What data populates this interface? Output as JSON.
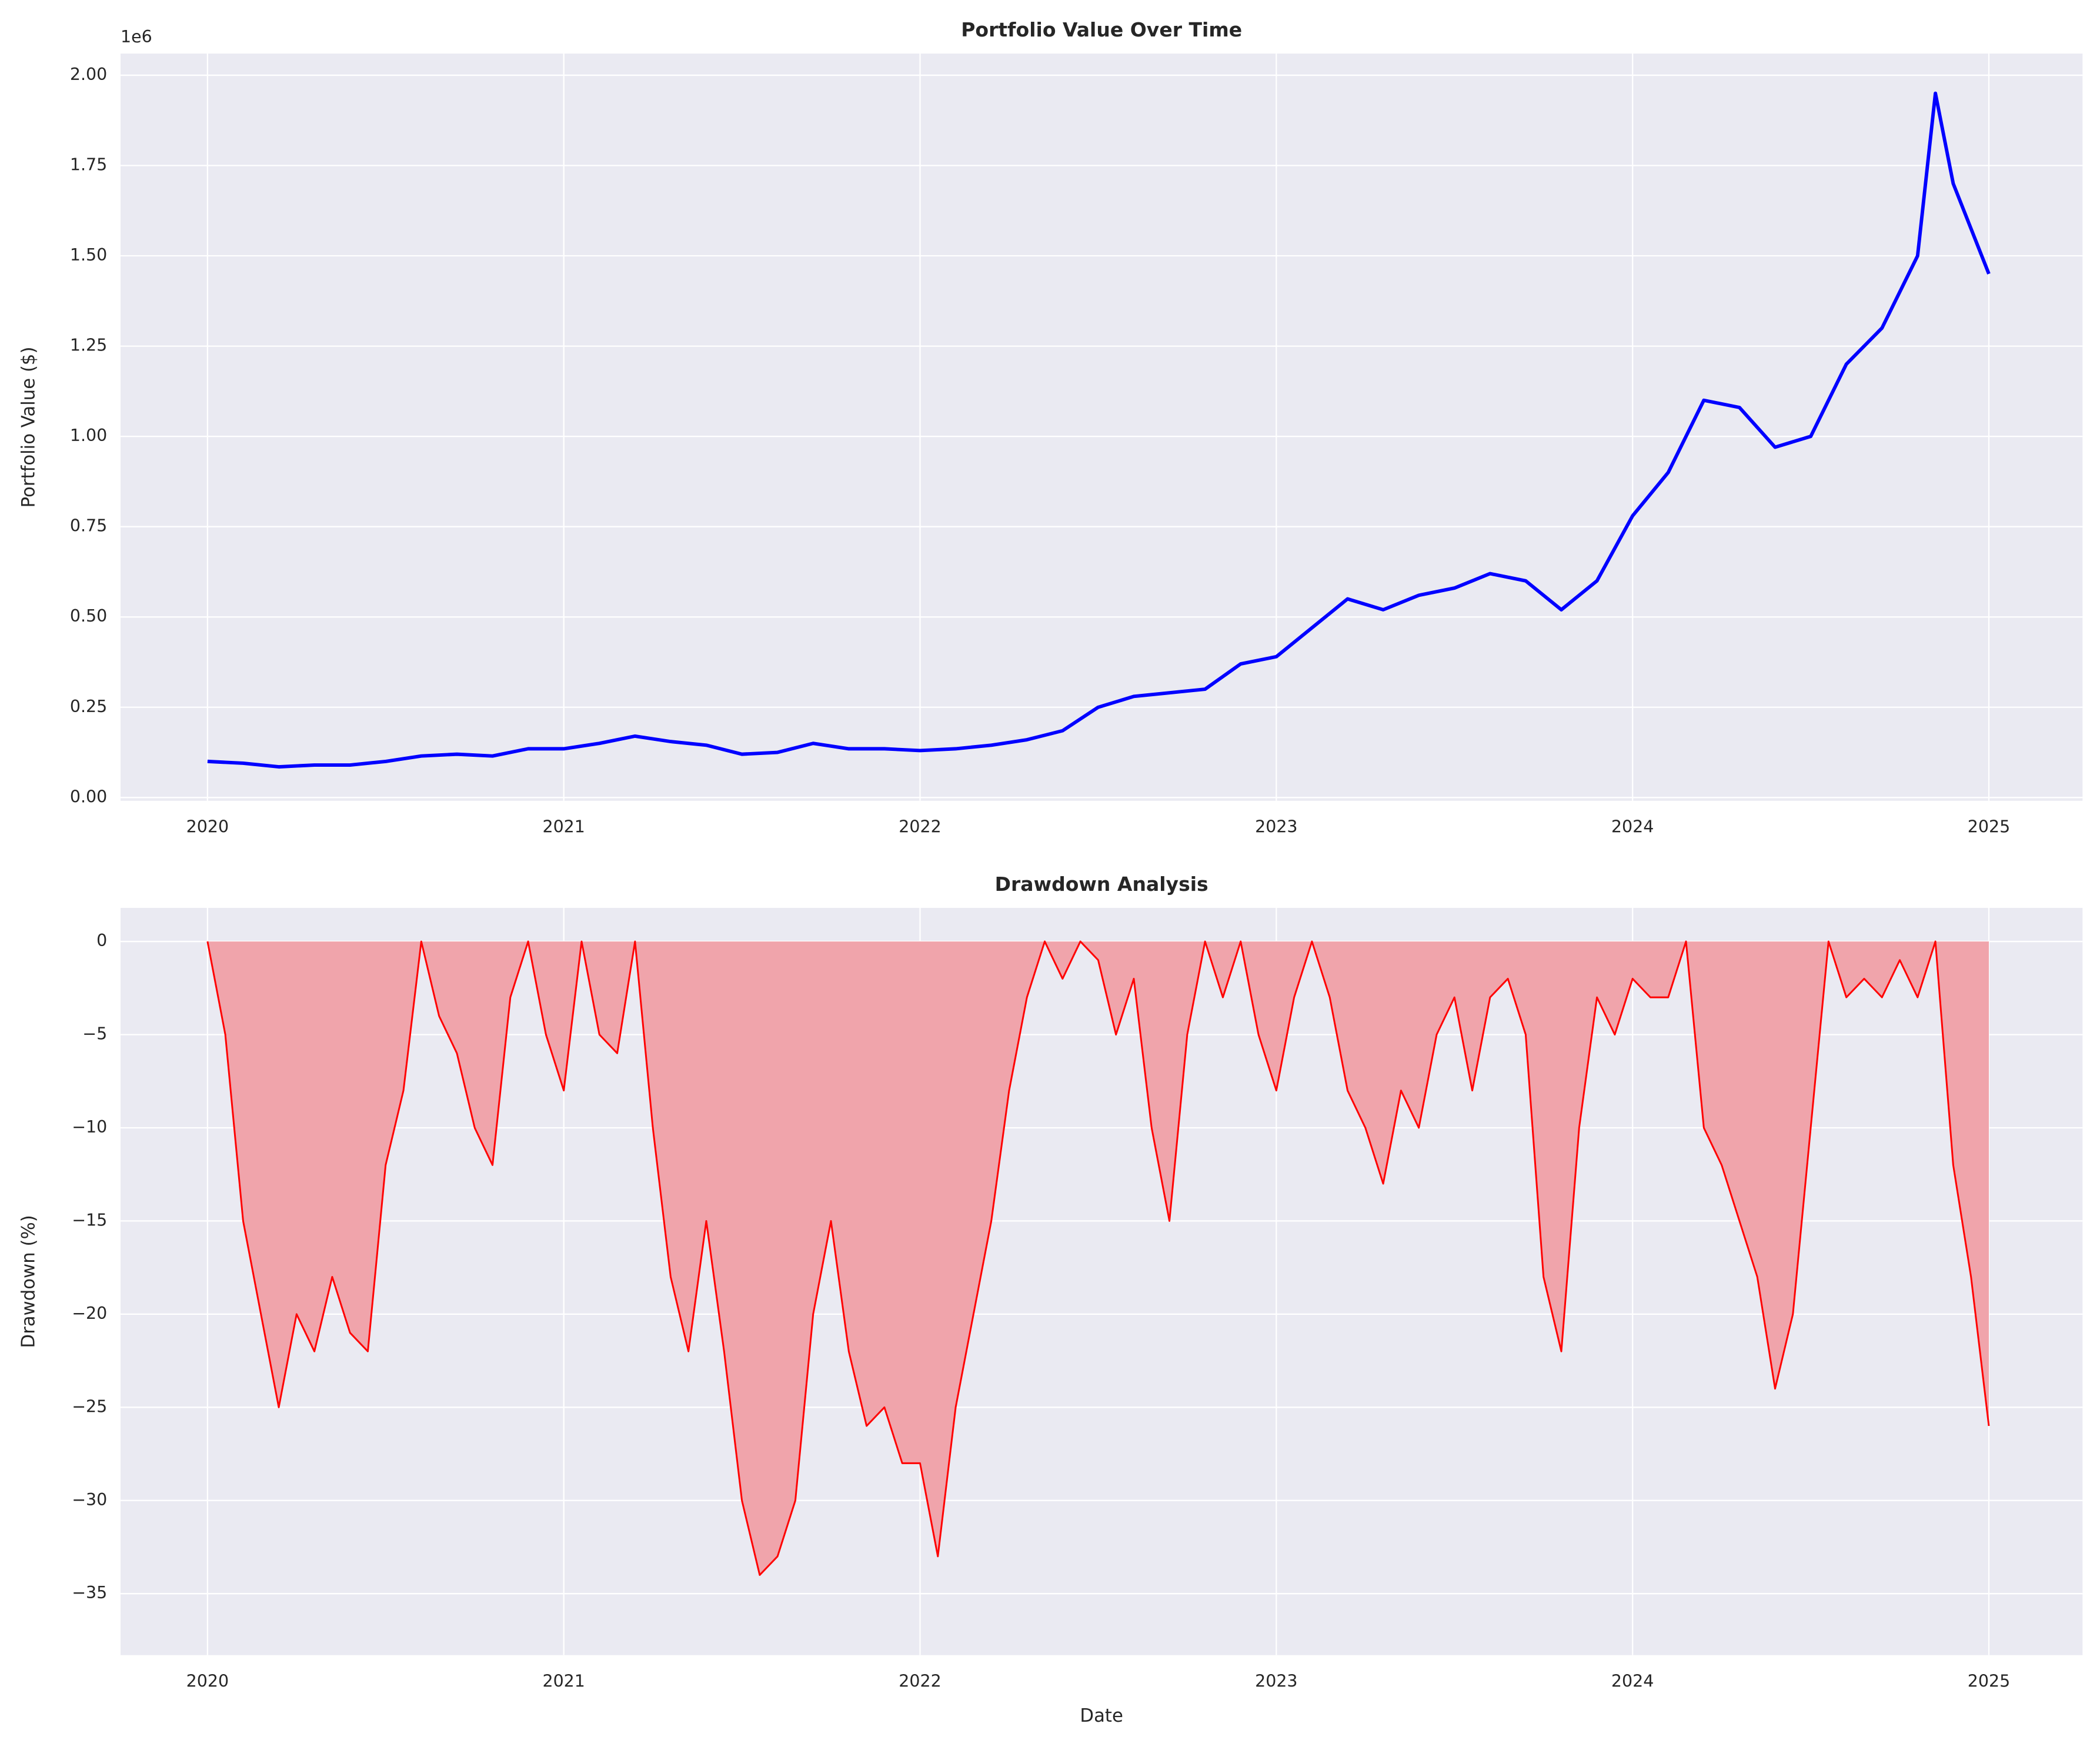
{
  "chart_data": [
    {
      "type": "line",
      "title": "Portfolio Value Over Time",
      "y_label": "Portfolio Value ($)",
      "y_offset_label": "1e6",
      "x": [
        2020.0,
        2020.1,
        2020.2,
        2020.3,
        2020.4,
        2020.5,
        2020.6,
        2020.7,
        2020.8,
        2020.9,
        2021.0,
        2021.1,
        2021.2,
        2021.3,
        2021.4,
        2021.5,
        2021.6,
        2021.7,
        2021.8,
        2021.9,
        2022.0,
        2022.1,
        2022.2,
        2022.3,
        2022.4,
        2022.5,
        2022.6,
        2022.7,
        2022.8,
        2022.9,
        2023.0,
        2023.1,
        2023.2,
        2023.3,
        2023.4,
        2023.5,
        2023.6,
        2023.7,
        2023.8,
        2023.9,
        2024.0,
        2024.1,
        2024.2,
        2024.3,
        2024.4,
        2024.5,
        2024.6,
        2024.7,
        2024.8,
        2024.85,
        2024.9,
        2025.0
      ],
      "series": [
        {
          "color": "#0000ff",
          "values": [
            100000,
            95000,
            85000,
            90000,
            90000,
            100000,
            115000,
            120000,
            115000,
            135000,
            135000,
            150000,
            170000,
            155000,
            145000,
            120000,
            125000,
            150000,
            135000,
            135000,
            130000,
            135000,
            145000,
            160000,
            185000,
            250000,
            280000,
            290000,
            300000,
            370000,
            390000,
            470000,
            550000,
            520000,
            560000,
            580000,
            620000,
            600000,
            520000,
            600000,
            780000,
            900000,
            1100000,
            1080000,
            970000,
            1000000,
            1200000,
            1300000,
            1500000,
            1950000,
            1700000,
            1450000
          ]
        }
      ],
      "xlim": [
        2019.756,
        2025.263
      ],
      "xticks": [
        2020,
        2021,
        2022,
        2023,
        2024,
        2025
      ],
      "ylim": [
        -9000,
        2060000
      ],
      "yticks": [
        {
          "value": 0,
          "label": "0.00"
        },
        {
          "value": 250000,
          "label": "0.25"
        },
        {
          "value": 500000,
          "label": "0.50"
        },
        {
          "value": 750000,
          "label": "0.75"
        },
        {
          "value": 1000000,
          "label": "1.00"
        },
        {
          "value": 1250000,
          "label": "1.25"
        },
        {
          "value": 1500000,
          "label": "1.50"
        },
        {
          "value": 1750000,
          "label": "1.75"
        },
        {
          "value": 2000000,
          "label": "2.00"
        }
      ],
      "grid": true
    },
    {
      "type": "area",
      "title": "Drawdown Analysis",
      "x_label": "Date",
      "y_label": "Drawdown (%)",
      "x": [
        2020.0,
        2020.05,
        2020.1,
        2020.15,
        2020.2,
        2020.25,
        2020.3,
        2020.35,
        2020.4,
        2020.45,
        2020.5,
        2020.55,
        2020.6,
        2020.65,
        2020.7,
        2020.75,
        2020.8,
        2020.85,
        2020.9,
        2020.95,
        2021.0,
        2021.05,
        2021.1,
        2021.15,
        2021.2,
        2021.25,
        2021.3,
        2021.35,
        2021.4,
        2021.45,
        2021.5,
        2021.55,
        2021.6,
        2021.65,
        2021.7,
        2021.75,
        2021.8,
        2021.85,
        2021.9,
        2021.95,
        2022.0,
        2022.05,
        2022.1,
        2022.15,
        2022.2,
        2022.25,
        2022.3,
        2022.35,
        2022.4,
        2022.45,
        2022.5,
        2022.55,
        2022.6,
        2022.65,
        2022.7,
        2022.75,
        2022.8,
        2022.85,
        2022.9,
        2022.95,
        2023.0,
        2023.05,
        2023.1,
        2023.15,
        2023.2,
        2023.25,
        2023.3,
        2023.35,
        2023.4,
        2023.45,
        2023.5,
        2023.55,
        2023.6,
        2023.65,
        2023.7,
        2023.75,
        2023.8,
        2023.85,
        2023.9,
        2023.95,
        2024.0,
        2024.05,
        2024.1,
        2024.15,
        2024.2,
        2024.25,
        2024.3,
        2024.35,
        2024.4,
        2024.45,
        2024.5,
        2024.55,
        2024.6,
        2024.65,
        2024.7,
        2024.75,
        2024.8,
        2024.85,
        2024.9,
        2024.95,
        2025.0
      ],
      "series": [
        {
          "color": "#ff0000",
          "fill_color": "#f0a4ab",
          "values": [
            0,
            -5,
            -15,
            -20,
            -25,
            -20,
            -22,
            -18,
            -21,
            -22,
            -12,
            -8,
            0,
            -4,
            -6,
            -10,
            -12,
            -3,
            0,
            -5,
            -8,
            0,
            -5,
            -6,
            0,
            -10,
            -18,
            -22,
            -15,
            -22,
            -30,
            -34,
            -33,
            -30,
            -20,
            -15,
            -22,
            -26,
            -25,
            -28,
            -28,
            -33,
            -25,
            -20,
            -15,
            -8,
            -3,
            0,
            -2,
            0,
            -1,
            -5,
            -2,
            -10,
            -15,
            -5,
            0,
            -3,
            0,
            -5,
            -8,
            -3,
            0,
            -3,
            -8,
            -10,
            -13,
            -8,
            -10,
            -5,
            -3,
            -8,
            -3,
            -2,
            -5,
            -18,
            -22,
            -10,
            -3,
            -5,
            -2,
            -3,
            -3,
            0,
            -10,
            -12,
            -15,
            -18,
            -24,
            -20,
            -10,
            0,
            -3,
            -2,
            -3,
            -1,
            -3,
            0,
            -12,
            -18,
            -26
          ]
        }
      ],
      "xlim": [
        2019.756,
        2025.263
      ],
      "xticks": [
        2020,
        2021,
        2022,
        2023,
        2024,
        2025
      ],
      "ylim": [
        -38.3,
        1.8
      ],
      "yticks": [
        {
          "value": -35,
          "label": "−35"
        },
        {
          "value": -30,
          "label": "−30"
        },
        {
          "value": -25,
          "label": "−25"
        },
        {
          "value": -20,
          "label": "−20"
        },
        {
          "value": -15,
          "label": "−15"
        },
        {
          "value": -10,
          "label": "−10"
        },
        {
          "value": -5,
          "label": "−5"
        },
        0
      ],
      "grid": true
    }
  ]
}
